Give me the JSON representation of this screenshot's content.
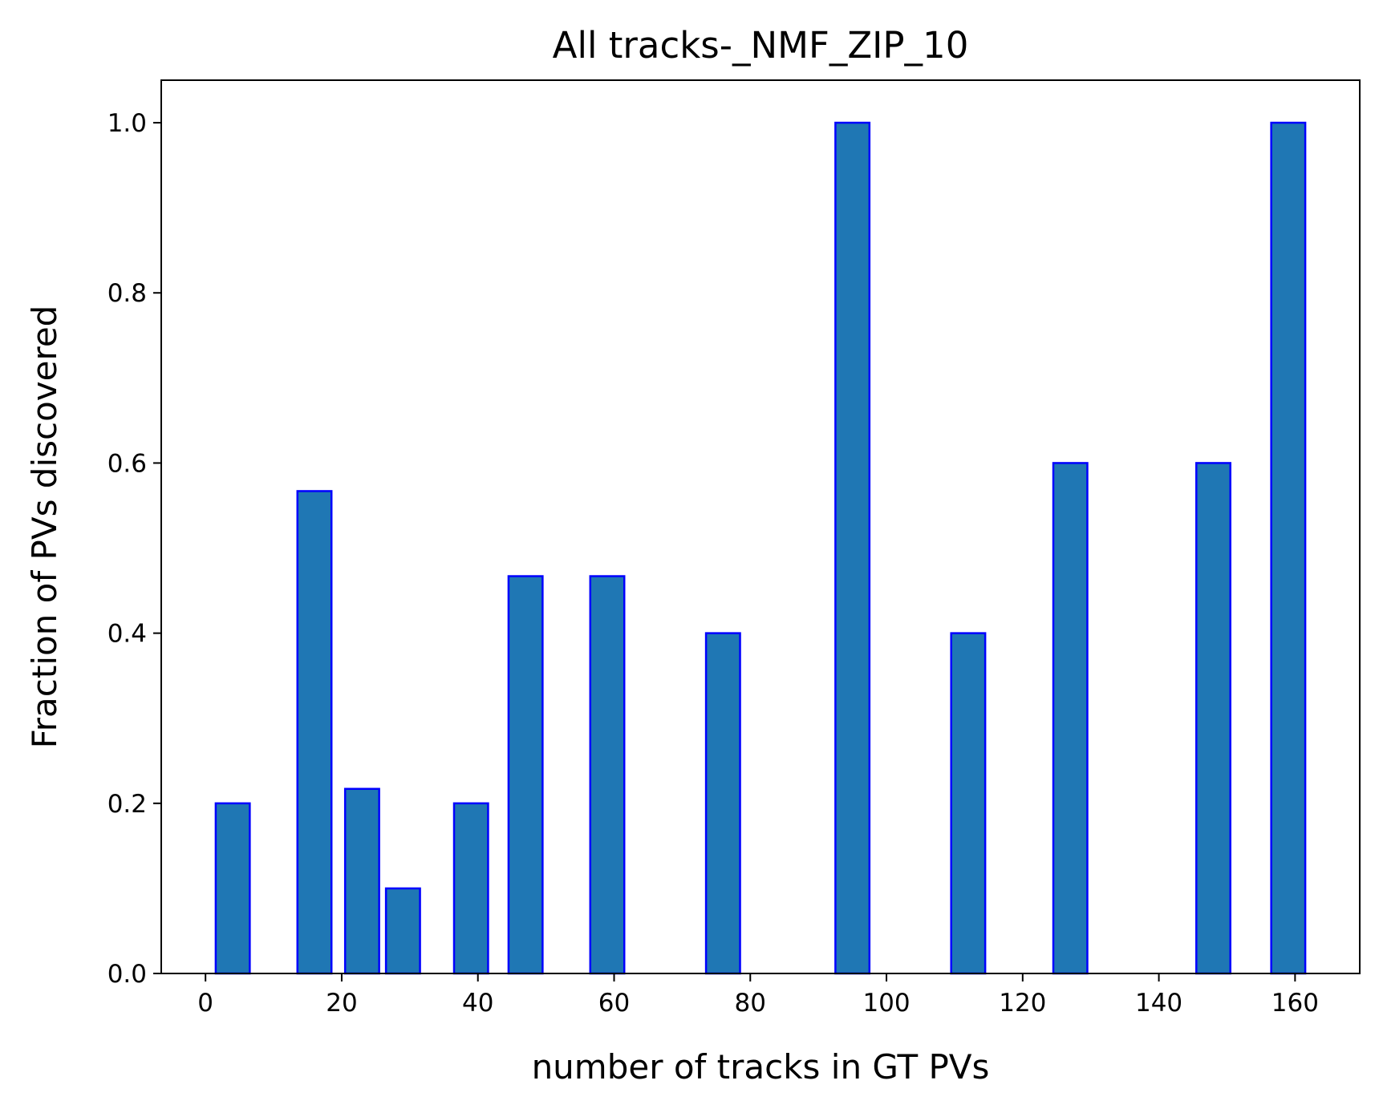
{
  "chart_data": {
    "type": "bar",
    "title": "All tracks-_NMF_ZIP_10",
    "xlabel": "number of tracks in GT PVs",
    "ylabel": "Fraction of PVs discovered",
    "xlim": [
      -6.5,
      169.5
    ],
    "ylim": [
      0,
      1.05
    ],
    "xticks": [
      0,
      20,
      40,
      60,
      80,
      100,
      120,
      140,
      160
    ],
    "xtick_labels": [
      "0",
      "20",
      "40",
      "60",
      "80",
      "100",
      "120",
      "140",
      "160"
    ],
    "yticks": [
      0.0,
      0.2,
      0.4,
      0.6,
      0.8,
      1.0
    ],
    "ytick_labels": [
      "0.0",
      "0.2",
      "0.4",
      "0.6",
      "0.8",
      "1.0"
    ],
    "bar_width": 5,
    "bars": [
      {
        "x": 4,
        "value": 0.2
      },
      {
        "x": 16,
        "value": 0.567
      },
      {
        "x": 23,
        "value": 0.217
      },
      {
        "x": 29,
        "value": 0.1
      },
      {
        "x": 39,
        "value": 0.2
      },
      {
        "x": 47,
        "value": 0.467
      },
      {
        "x": 59,
        "value": 0.467
      },
      {
        "x": 76,
        "value": 0.4
      },
      {
        "x": 95,
        "value": 1.0
      },
      {
        "x": 112,
        "value": 0.4
      },
      {
        "x": 127,
        "value": 0.6
      },
      {
        "x": 148,
        "value": 0.6
      },
      {
        "x": 159,
        "value": 1.0
      }
    ],
    "grid": false,
    "legend": "none",
    "colors": {
      "bar_fill": "#1f77b4",
      "bar_edge": "#0000ff",
      "axes": "#000000"
    }
  }
}
